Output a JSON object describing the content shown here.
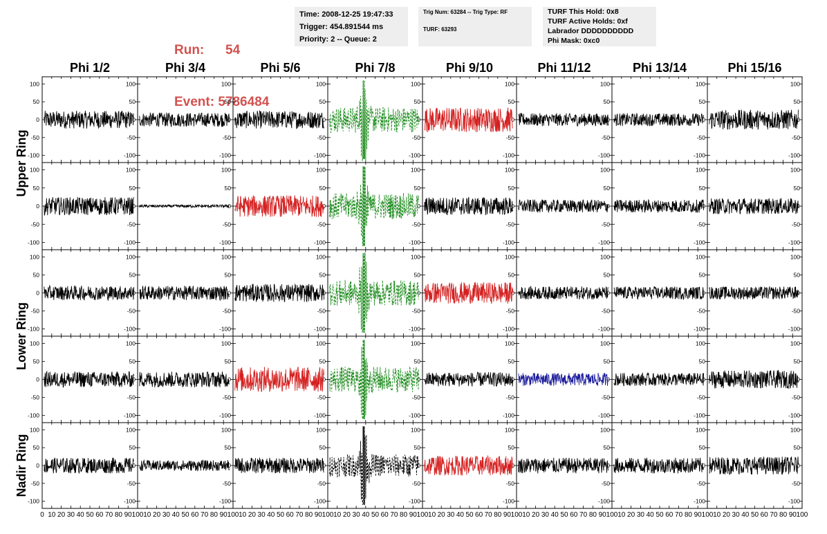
{
  "run": {
    "label": "Run:",
    "value": "54"
  },
  "event": {
    "label": "Event:",
    "value": "5786484"
  },
  "info": {
    "time": "Time: 2008-12-25 19:47:33",
    "trigger": "Trigger: 454.891544 ms",
    "priority": "Priority: 2 -- Queue: 2",
    "trig_num": "Trig Num: 63284 -- Trig Type: RF",
    "turf": "TURF: 63293",
    "turf_hold": "TURF This Hold: 0x8",
    "turf_active": "TURF Active Holds: 0xf",
    "labrador": "Labrador DDDDDDDDDD",
    "phi_mask": "Phi Mask: 0xc0"
  },
  "colors": {
    "normal": "#000000",
    "red": "#d42020",
    "green": "#1e8c1e",
    "blue": "#1c1c9c",
    "header_red": "#d2524f",
    "info_bg": "#eeeeee"
  },
  "chart_data": {
    "type": "line",
    "columns": [
      "Phi 1/2",
      "Phi 3/4",
      "Phi 5/6",
      "Phi 7/8",
      "Phi 9/10",
      "Phi 11/12",
      "Phi 13/14",
      "Phi 15/16"
    ],
    "rows": [
      "Upper Ring",
      "Upper Ring",
      "Lower Ring",
      "Lower Ring",
      "Nadir Ring"
    ],
    "row_labels": [
      "Upper Ring",
      "Lower Ring",
      "Nadir Ring"
    ],
    "ylim": [
      -120,
      120
    ],
    "yticks": [
      100,
      50,
      0,
      -50,
      -100
    ],
    "xlim": [
      0,
      100
    ],
    "xticks": [
      0,
      10,
      20,
      30,
      40,
      50,
      60,
      70,
      80,
      90,
      100
    ],
    "xtick_labels": [
      "0",
      "10",
      "20",
      "30",
      "40",
      "50",
      "60",
      "70",
      "80",
      "90",
      "100"
    ],
    "panel_styles": [
      [
        "normal",
        "normal",
        "normal",
        "green-dashed",
        "red",
        "normal",
        "normal",
        "normal"
      ],
      [
        "normal",
        "normal",
        "red",
        "green-dashed",
        "normal",
        "normal",
        "normal",
        "normal"
      ],
      [
        "normal",
        "normal",
        "normal",
        "green-dashed",
        "red",
        "normal",
        "normal",
        "normal"
      ],
      [
        "normal",
        "normal",
        "red",
        "green-dashed",
        "normal",
        "blue",
        "normal",
        "normal"
      ],
      [
        "normal",
        "normal",
        "normal",
        "black-dashed",
        "red",
        "normal",
        "normal",
        "normal"
      ]
    ],
    "panel_amplitude": [
      [
        25,
        20,
        25,
        40,
        35,
        18,
        18,
        28
      ],
      [
        25,
        4,
        30,
        40,
        25,
        18,
        18,
        22
      ],
      [
        20,
        20,
        25,
        40,
        30,
        18,
        18,
        18
      ],
      [
        22,
        22,
        35,
        40,
        20,
        18,
        18,
        25
      ],
      [
        22,
        15,
        22,
        35,
        28,
        22,
        22,
        25
      ]
    ],
    "burst": {
      "center_x": 38,
      "peak": 110
    }
  }
}
